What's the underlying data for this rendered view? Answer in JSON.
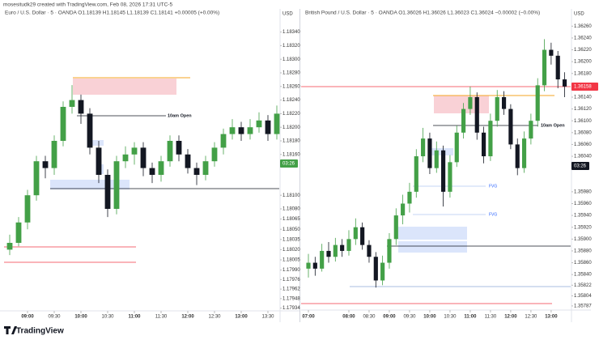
{
  "header": {
    "credit": "mosesitudk29 created with TradingView.com, Feb 08, 2026 17:31 UTC-5"
  },
  "footer": {
    "brand": "TradingView"
  },
  "chart_data": [
    {
      "type": "candlestick",
      "title": "Euro / U.S. Dollar · 5 · OANDA   O1.18139  H1.18145  L1.18139  C1.18141  +0.00005 (+0.00%)",
      "currency": "USD",
      "countdown": "03:26",
      "annotation": "10am Open",
      "up_color": "#43a047",
      "down_color": "#131722",
      "x": [
        "08:40",
        "08:50",
        "09:00",
        "09:10",
        "09:20",
        "09:30",
        "09:40",
        "09:50",
        "10:00",
        "10:10",
        "10:20",
        "10:30",
        "10:40",
        "10:50",
        "11:00",
        "11:10",
        "11:20",
        "11:30",
        "11:40",
        "11:50",
        "12:00",
        "12:10",
        "12:20",
        "12:30",
        "12:40",
        "12:50",
        "13:00",
        "13:10",
        "13:20",
        "13:30",
        "13:40"
      ],
      "ohlc": [
        [
          1.1802,
          1.18042,
          1.18012,
          1.1803
        ],
        [
          1.1803,
          1.18068,
          1.18025,
          1.1806
        ],
        [
          1.1806,
          1.18108,
          1.1805,
          1.181
        ],
        [
          1.181,
          1.18158,
          1.18092,
          1.1815
        ],
        [
          1.1815,
          1.18158,
          1.18125,
          1.1814
        ],
        [
          1.1814,
          1.18188,
          1.1813,
          1.1818
        ],
        [
          1.1818,
          1.18238,
          1.18172,
          1.1823
        ],
        [
          1.1823,
          1.18262,
          1.1822,
          1.1824
        ],
        [
          1.1824,
          1.18248,
          1.18205,
          1.1822
        ],
        [
          1.1822,
          1.18228,
          1.1816,
          1.1817
        ],
        [
          1.1817,
          1.1818,
          1.18118,
          1.1813
        ],
        [
          1.1813,
          1.18138,
          1.18068,
          1.1808
        ],
        [
          1.1808,
          1.18158,
          1.18072,
          1.1815
        ],
        [
          1.1815,
          1.18172,
          1.1814,
          1.1816
        ],
        [
          1.1816,
          1.18178,
          1.18145,
          1.1817
        ],
        [
          1.1817,
          1.18178,
          1.18128,
          1.1814
        ],
        [
          1.1814,
          1.18148,
          1.18118,
          1.1813
        ],
        [
          1.1813,
          1.18158,
          1.1812,
          1.1815
        ],
        [
          1.1815,
          1.18188,
          1.18142,
          1.1818
        ],
        [
          1.1818,
          1.18188,
          1.1815,
          1.1816
        ],
        [
          1.1816,
          1.18168,
          1.18132,
          1.1814
        ],
        [
          1.1814,
          1.18148,
          1.18115,
          1.1813
        ],
        [
          1.1813,
          1.18158,
          1.18122,
          1.1815
        ],
        [
          1.1815,
          1.18178,
          1.18142,
          1.1817
        ],
        [
          1.1817,
          1.18198,
          1.1816,
          1.1819
        ],
        [
          1.1819,
          1.18212,
          1.18182,
          1.182
        ],
        [
          1.182,
          1.18208,
          1.1818,
          1.1819
        ],
        [
          1.1819,
          1.18212,
          1.18182,
          1.182
        ],
        [
          1.182,
          1.18222,
          1.18192,
          1.1821
        ],
        [
          1.1821,
          1.18218,
          1.1818,
          1.1819
        ],
        [
          1.1819,
          1.18232,
          1.18182,
          1.1822
        ]
      ],
      "ylim": [
        1.1793,
        1.18355
      ],
      "yticks": [
        {
          "value": 1.1834,
          "label": "1.18340"
        },
        {
          "value": 1.1832,
          "label": "1.18320"
        },
        {
          "value": 1.183,
          "label": "1.18300"
        },
        {
          "value": 1.1828,
          "label": "1.18280"
        },
        {
          "value": 1.1826,
          "label": "1.18260"
        },
        {
          "value": 1.1824,
          "label": "1.18240"
        },
        {
          "value": 1.1822,
          "label": "1.18220"
        },
        {
          "value": 1.182,
          "label": "1.18200"
        },
        {
          "value": 1.1818,
          "label": "1.18180"
        },
        {
          "value": 1.1816,
          "label": "1.18160"
        },
        {
          "value": 1.181,
          "label": "1.18100"
        },
        {
          "value": 1.1808,
          "label": "1.18080"
        },
        {
          "value": 1.18065,
          "label": "1.18065"
        },
        {
          "value": 1.1805,
          "label": "1.18050"
        },
        {
          "value": 1.18035,
          "label": "1.18035"
        },
        {
          "value": 1.1802,
          "label": "1.18020"
        },
        {
          "value": 1.18005,
          "label": "1.18005"
        },
        {
          "value": 1.1799,
          "label": "1.17990"
        },
        {
          "value": 1.17976,
          "label": "1.17976"
        },
        {
          "value": 1.17962,
          "label": "1.17962"
        },
        {
          "value": 1.17948,
          "label": "1.17948"
        },
        {
          "value": 1.17934,
          "label": "1.17934"
        }
      ],
      "xticks": [
        "09:00",
        "09:30",
        "10:00",
        "10:30",
        "11:00",
        "11:30",
        "12:00",
        "12:30",
        "13:00",
        "13:30"
      ]
    },
    {
      "type": "candlestick",
      "title": "British Pound / U.S. Dollar · 5 · OANDA   O1.36026  H1.36026  L1.36023  C1.36024  −0.00002 (−0.00%)",
      "currency": "USD",
      "countdown": "03:26",
      "last_price_label": "1.36158",
      "annotation": "10am Open",
      "gap_labels": [
        "FVG",
        "FVG"
      ],
      "up_color": "#43a047",
      "down_color": "#131722",
      "x": [
        "07:00",
        "07:10",
        "07:20",
        "07:30",
        "07:40",
        "07:50",
        "08:00",
        "08:10",
        "08:20",
        "08:30",
        "08:40",
        "08:50",
        "09:00",
        "09:10",
        "09:20",
        "09:30",
        "09:40",
        "09:50",
        "10:00",
        "10:10",
        "10:20",
        "10:30",
        "10:40",
        "10:50",
        "11:00",
        "11:10",
        "11:20",
        "11:30",
        "11:40",
        "11:50",
        "12:00",
        "12:10",
        "12:20",
        "12:30",
        "12:40",
        "12:50",
        "13:00",
        "13:10",
        "13:20"
      ],
      "ohlc": [
        [
          1.3585,
          1.35875,
          1.35835,
          1.3586
        ],
        [
          1.3586,
          1.3587,
          1.35838,
          1.3585
        ],
        [
          1.3585,
          1.35892,
          1.35845,
          1.3588
        ],
        [
          1.3588,
          1.35895,
          1.3586,
          1.3587
        ],
        [
          1.3587,
          1.35902,
          1.35862,
          1.3589
        ],
        [
          1.3589,
          1.359,
          1.3587,
          1.3588
        ],
        [
          1.3588,
          1.35915,
          1.35872,
          1.359
        ],
        [
          1.359,
          1.35935,
          1.3589,
          1.3592
        ],
        [
          1.3592,
          1.35928,
          1.35882,
          1.3589
        ],
        [
          1.3589,
          1.35898,
          1.3586,
          1.3587
        ],
        [
          1.3587,
          1.35878,
          1.35818,
          1.3583
        ],
        [
          1.3583,
          1.35872,
          1.35822,
          1.3586
        ],
        [
          1.3586,
          1.3591,
          1.3585,
          1.359
        ],
        [
          1.359,
          1.35952,
          1.3589,
          1.3594
        ],
        [
          1.3594,
          1.35975,
          1.35925,
          1.3596
        ],
        [
          1.3596,
          1.35995,
          1.35945,
          1.3598
        ],
        [
          1.3598,
          1.36052,
          1.3597,
          1.3604
        ],
        [
          1.3604,
          1.36088,
          1.3603,
          1.3607
        ],
        [
          1.3607,
          1.3608,
          1.3601,
          1.3602
        ],
        [
          1.3602,
          1.36065,
          1.36012,
          1.3605
        ],
        [
          1.3605,
          1.36058,
          1.35955,
          1.3598
        ],
        [
          1.3598,
          1.36042,
          1.3597,
          1.3603
        ],
        [
          1.3603,
          1.36092,
          1.36022,
          1.3608
        ],
        [
          1.3608,
          1.3613,
          1.3607,
          1.3612
        ],
        [
          1.3612,
          1.36158,
          1.3611,
          1.3614
        ],
        [
          1.3614,
          1.36148,
          1.36068,
          1.3608
        ],
        [
          1.3608,
          1.3609,
          1.36028,
          1.3604
        ],
        [
          1.3604,
          1.36112,
          1.36032,
          1.361
        ],
        [
          1.361,
          1.36152,
          1.3609,
          1.3614
        ],
        [
          1.3614,
          1.3615,
          1.3611,
          1.3612
        ],
        [
          1.3612,
          1.36128,
          1.36052,
          1.3606
        ],
        [
          1.3606,
          1.3607,
          1.36008,
          1.3602
        ],
        [
          1.3602,
          1.36082,
          1.36012,
          1.3607
        ],
        [
          1.3607,
          1.36112,
          1.3606,
          1.361
        ],
        [
          1.361,
          1.36172,
          1.3609,
          1.3616
        ],
        [
          1.3616,
          1.36238,
          1.3615,
          1.3622
        ],
        [
          1.3622,
          1.36232,
          1.36195,
          1.3621
        ],
        [
          1.3621,
          1.36218,
          1.36155,
          1.3617
        ],
        [
          1.3617,
          1.36182,
          1.3614,
          1.36158
        ]
      ],
      "ylim": [
        1.3578,
        1.3627
      ],
      "yticks": [
        {
          "value": 1.3626,
          "label": "1.36260"
        },
        {
          "value": 1.3624,
          "label": "1.36240"
        },
        {
          "value": 1.3622,
          "label": "1.36220"
        },
        {
          "value": 1.362,
          "label": "1.36200"
        },
        {
          "value": 1.3618,
          "label": "1.36180"
        },
        {
          "value": 1.3614,
          "label": "1.36140"
        },
        {
          "value": 1.3612,
          "label": "1.36120"
        },
        {
          "value": 1.361,
          "label": "1.36100"
        },
        {
          "value": 1.3608,
          "label": "1.36080"
        },
        {
          "value": 1.3606,
          "label": "1.36060"
        },
        {
          "value": 1.3604,
          "label": "1.36040"
        },
        {
          "value": 1.3598,
          "label": "1.35980"
        },
        {
          "value": 1.3596,
          "label": "1.35960"
        },
        {
          "value": 1.3594,
          "label": "1.35940"
        },
        {
          "value": 1.3592,
          "label": "1.35920"
        },
        {
          "value": 1.359,
          "label": "1.35900"
        },
        {
          "value": 1.3588,
          "label": "1.35880"
        },
        {
          "value": 1.3586,
          "label": "1.35860"
        },
        {
          "value": 1.3584,
          "label": "1.35840"
        },
        {
          "value": 1.35822,
          "label": "1.35822"
        },
        {
          "value": 1.35804,
          "label": "1.35804"
        },
        {
          "value": 1.35787,
          "label": "1.35787"
        }
      ],
      "xticks": [
        "07:00",
        "08:00",
        "08:30",
        "09:00",
        "09:30",
        "10:00",
        "10:30",
        "11:00",
        "11:30",
        "12:00",
        "12:30",
        "13:00"
      ]
    }
  ]
}
